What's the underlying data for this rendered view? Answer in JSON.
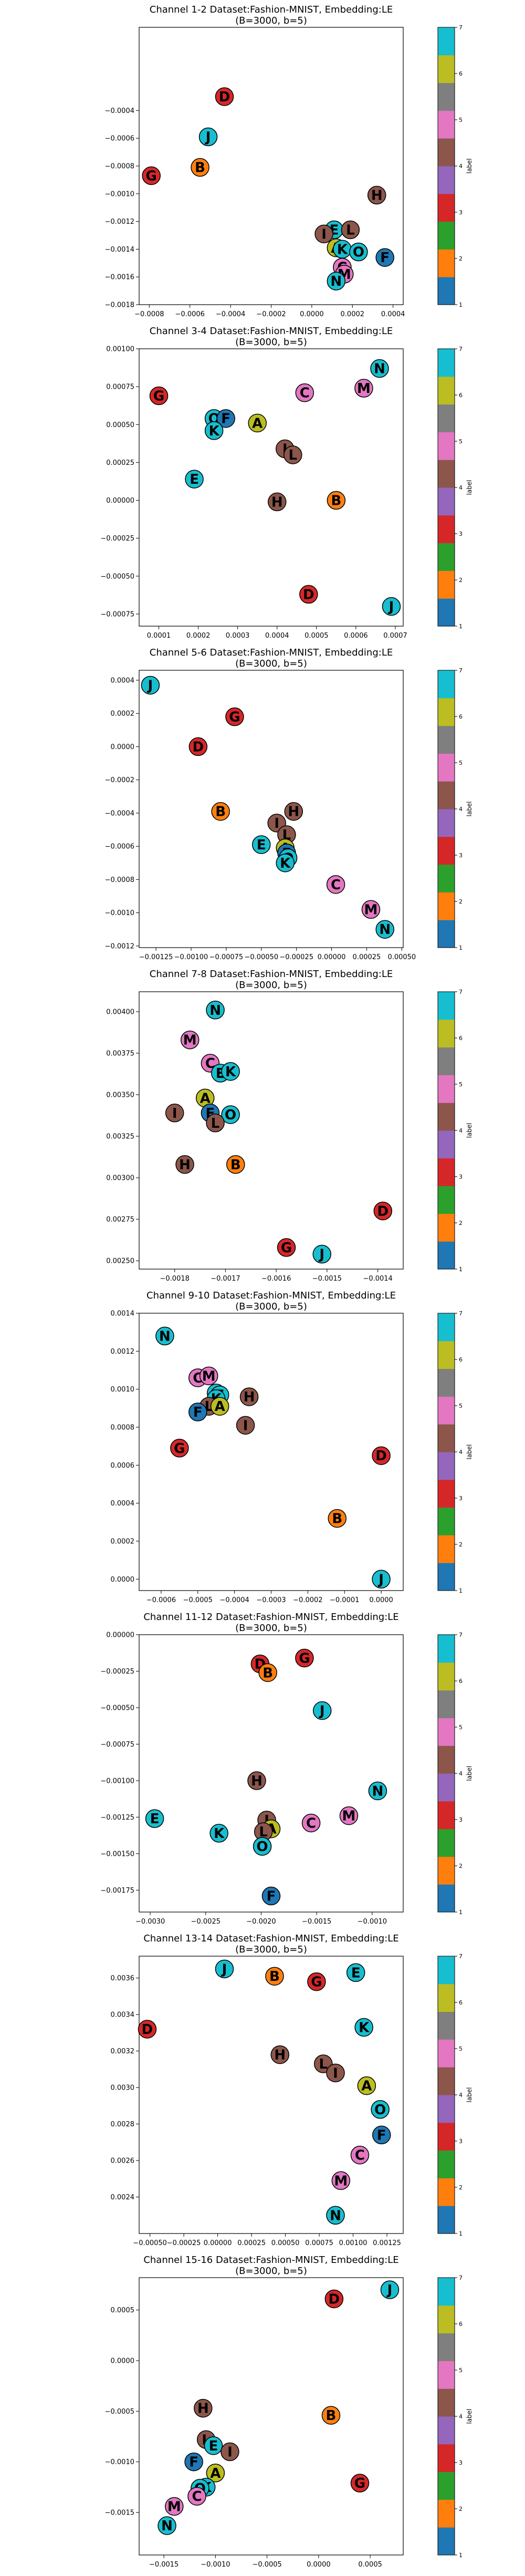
{
  "colorbar": {
    "label": "label",
    "ticks": [
      "1",
      "2",
      "3",
      "4",
      "5",
      "6",
      "7"
    ],
    "colors": [
      "#1f77b4",
      "#ff7f0e",
      "#2ca02c",
      "#d62728",
      "#9467bd",
      "#8c564b",
      "#e377c2",
      "#7f7f7f",
      "#bcbd22",
      "#17becf"
    ]
  },
  "letter_colors": {
    "A": "#bcbd22",
    "B": "#ff7f0e",
    "C": "#e377c2",
    "D": "#d62728",
    "E": "#17becf",
    "F": "#1f77b4",
    "G": "#d62728",
    "H": "#8c564b",
    "I": "#8c564b",
    "J": "#17becf",
    "K": "#17becf",
    "L": "#8c564b",
    "M": "#e377c2",
    "N": "#17becf",
    "O": "#17becf"
  },
  "chart_data": [
    {
      "type": "scatter",
      "title": "Channel 1-2 Dataset:Fashion-MNIST, Embedding:LE",
      "subtitle": "(B=3000, b=5)",
      "xlim": [
        -0.00085,
        0.00045
      ],
      "ylim": [
        -0.0018,
        0.0002
      ],
      "xticks": [
        -0.0008,
        -0.0006,
        -0.0004,
        -0.0002,
        0.0,
        0.0002,
        0.0004
      ],
      "xtick_labels": [
        "−0.0008",
        "−0.0006",
        "−0.0004",
        "−0.0002",
        "0.0000",
        "0.0002",
        "0.0004"
      ],
      "yticks": [
        -0.0018,
        -0.0016,
        -0.0014,
        -0.0012,
        -0.001,
        -0.0008,
        -0.0006,
        -0.0004
      ],
      "ytick_labels": [
        "−0.0018",
        "−0.0016",
        "−0.0014",
        "−0.0012",
        "−0.0010",
        "−0.0008",
        "−0.0006",
        "−0.0004"
      ],
      "points": [
        {
          "label": "D",
          "x": -0.00043,
          "y": -0.0003
        },
        {
          "label": "J",
          "x": -0.00051,
          "y": -0.00059
        },
        {
          "label": "B",
          "x": -0.00055,
          "y": -0.00081
        },
        {
          "label": "G",
          "x": -0.00079,
          "y": -0.00087
        },
        {
          "label": "H",
          "x": 0.00032,
          "y": -0.00101
        },
        {
          "label": "E",
          "x": 0.00011,
          "y": -0.00126
        },
        {
          "label": "L",
          "x": 0.00019,
          "y": -0.00126
        },
        {
          "label": "I",
          "x": 6e-05,
          "y": -0.00129
        },
        {
          "label": "A",
          "x": 0.00012,
          "y": -0.00139
        },
        {
          "label": "K",
          "x": 0.00015,
          "y": -0.0014
        },
        {
          "label": "O",
          "x": 0.00023,
          "y": -0.00142
        },
        {
          "label": "F",
          "x": 0.00036,
          "y": -0.00146
        },
        {
          "label": "C",
          "x": 0.00015,
          "y": -0.00153
        },
        {
          "label": "M",
          "x": 0.00016,
          "y": -0.00158
        },
        {
          "label": "N",
          "x": 0.00012,
          "y": -0.00163
        }
      ]
    },
    {
      "type": "scatter",
      "title": "Channel 3-4 Dataset:Fashion-MNIST, Embedding:LE",
      "subtitle": "(B=3000, b=5)",
      "xlim": [
        5e-05,
        0.00072
      ],
      "ylim": [
        -0.00083,
        0.001
      ],
      "xticks": [
        0.0001,
        0.0002,
        0.0003,
        0.0004,
        0.0005,
        0.0006,
        0.0007
      ],
      "xtick_labels": [
        "0.0001",
        "0.0002",
        "0.0003",
        "0.0004",
        "0.0005",
        "0.0006",
        "0.0007"
      ],
      "yticks": [
        -0.00075,
        -0.0005,
        -0.00025,
        0.0,
        0.00025,
        0.0005,
        0.00075,
        0.001
      ],
      "ytick_labels": [
        "−0.00075",
        "−0.00050",
        "−0.00025",
        "0.00000",
        "0.00025",
        "0.00050",
        "0.00075",
        "0.00100"
      ],
      "points": [
        {
          "label": "N",
          "x": 0.00066,
          "y": 0.00087
        },
        {
          "label": "M",
          "x": 0.00062,
          "y": 0.00074
        },
        {
          "label": "C",
          "x": 0.00047,
          "y": 0.00071
        },
        {
          "label": "G",
          "x": 0.0001,
          "y": 0.00069
        },
        {
          "label": "O",
          "x": 0.00024,
          "y": 0.00054
        },
        {
          "label": "F",
          "x": 0.00027,
          "y": 0.00054
        },
        {
          "label": "K",
          "x": 0.00024,
          "y": 0.00046
        },
        {
          "label": "A",
          "x": 0.00035,
          "y": 0.00051
        },
        {
          "label": "I",
          "x": 0.00042,
          "y": 0.00034
        },
        {
          "label": "L",
          "x": 0.00044,
          "y": 0.0003
        },
        {
          "label": "E",
          "x": 0.00019,
          "y": 0.00014
        },
        {
          "label": "H",
          "x": 0.0004,
          "y": -1e-05
        },
        {
          "label": "B",
          "x": 0.00055,
          "y": 0.0
        },
        {
          "label": "D",
          "x": 0.00048,
          "y": -0.00062
        },
        {
          "label": "J",
          "x": 0.00069,
          "y": -0.0007
        }
      ]
    },
    {
      "type": "scatter",
      "title": "Channel 5-6 Dataset:Fashion-MNIST, Embedding:LE",
      "subtitle": "(B=3000, b=5)",
      "xlim": [
        -0.00137,
        0.00051
      ],
      "ylim": [
        -0.00121,
        0.00046
      ],
      "xticks": [
        -0.00125,
        -0.001,
        -0.00075,
        -0.0005,
        -0.00025,
        0.0,
        0.00025,
        0.0005
      ],
      "xtick_labels": [
        "−0.00125",
        "−0.00100",
        "−0.00075",
        "−0.00050",
        "−0.00025",
        "0.00000",
        "0.00025",
        "0.00050"
      ],
      "yticks": [
        -0.0012,
        -0.001,
        -0.0008,
        -0.0006,
        -0.0004,
        -0.0002,
        0.0,
        0.0002,
        0.0004
      ],
      "ytick_labels": [
        "−0.0012",
        "−0.0010",
        "−0.0008",
        "−0.0006",
        "−0.0004",
        "−0.0002",
        "0.0000",
        "0.0002",
        "0.0004"
      ],
      "points": [
        {
          "label": "J",
          "x": -0.00129,
          "y": 0.00037
        },
        {
          "label": "G",
          "x": -0.00069,
          "y": 0.00018
        },
        {
          "label": "D",
          "x": -0.00095,
          "y": 0.0
        },
        {
          "label": "B",
          "x": -0.00079,
          "y": -0.00039
        },
        {
          "label": "H",
          "x": -0.00027,
          "y": -0.00039
        },
        {
          "label": "I",
          "x": -0.00039,
          "y": -0.00046
        },
        {
          "label": "L",
          "x": -0.00032,
          "y": -0.00053
        },
        {
          "label": "A",
          "x": -0.00033,
          "y": -0.00061
        },
        {
          "label": "E",
          "x": -0.0005,
          "y": -0.00059
        },
        {
          "label": "F",
          "x": -0.00032,
          "y": -0.00064
        },
        {
          "label": "O",
          "x": -0.00031,
          "y": -0.00067
        },
        {
          "label": "K",
          "x": -0.00033,
          "y": -0.0007
        },
        {
          "label": "C",
          "x": 3e-05,
          "y": -0.00083
        },
        {
          "label": "M",
          "x": 0.00028,
          "y": -0.00098
        },
        {
          "label": "N",
          "x": 0.00038,
          "y": -0.0011
        }
      ]
    },
    {
      "type": "scatter",
      "title": "Channel 7-8 Dataset:Fashion-MNIST, Embedding:LE",
      "subtitle": "(B=3000, b=5)",
      "xlim": [
        -0.00187,
        -0.00135
      ],
      "ylim": [
        0.00245,
        0.00412
      ],
      "xticks": [
        -0.0018,
        -0.0017,
        -0.0016,
        -0.0015,
        -0.0014
      ],
      "xtick_labels": [
        "−0.0018",
        "−0.0017",
        "−0.0016",
        "−0.0015",
        "−0.0014"
      ],
      "yticks": [
        0.0025,
        0.00275,
        0.003,
        0.00325,
        0.0035,
        0.00375,
        0.004
      ],
      "ytick_labels": [
        "0.00250",
        "0.00275",
        "0.00300",
        "0.00325",
        "0.00350",
        "0.00375",
        "0.00400"
      ],
      "points": [
        {
          "label": "N",
          "x": -0.00172,
          "y": 0.00401
        },
        {
          "label": "M",
          "x": -0.00177,
          "y": 0.00383
        },
        {
          "label": "C",
          "x": -0.00173,
          "y": 0.00369
        },
        {
          "label": "E",
          "x": -0.00171,
          "y": 0.00363
        },
        {
          "label": "K",
          "x": -0.00169,
          "y": 0.00364
        },
        {
          "label": "A",
          "x": -0.00174,
          "y": 0.00348
        },
        {
          "label": "I",
          "x": -0.0018,
          "y": 0.00339
        },
        {
          "label": "F",
          "x": -0.00173,
          "y": 0.00339
        },
        {
          "label": "O",
          "x": -0.00169,
          "y": 0.00338
        },
        {
          "label": "L",
          "x": -0.00172,
          "y": 0.00333
        },
        {
          "label": "H",
          "x": -0.00178,
          "y": 0.00308
        },
        {
          "label": "B",
          "x": -0.00168,
          "y": 0.00308
        },
        {
          "label": "D",
          "x": -0.00139,
          "y": 0.0028
        },
        {
          "label": "G",
          "x": -0.00158,
          "y": 0.00258
        },
        {
          "label": "J",
          "x": -0.00151,
          "y": 0.00254
        }
      ]
    },
    {
      "type": "scatter",
      "title": "Channel 9-10 Dataset:Fashion-MNIST, Embedding:LE",
      "subtitle": "(B=3000, b=5)",
      "xlim": [
        -0.00066,
        6e-05
      ],
      "ylim": [
        -6e-05,
        0.0014
      ],
      "xticks": [
        -0.0006,
        -0.0005,
        -0.0004,
        -0.0003,
        -0.0002,
        -0.0001,
        0.0
      ],
      "xtick_labels": [
        "−0.0006",
        "−0.0005",
        "−0.0004",
        "−0.0003",
        "−0.0002",
        "−0.0001",
        "0.0000"
      ],
      "yticks": [
        0.0,
        0.0002,
        0.0004,
        0.0006,
        0.0008,
        0.001,
        0.0012,
        0.0014
      ],
      "ytick_labels": [
        "0.0000",
        "0.0002",
        "0.0004",
        "0.0006",
        "0.0008",
        "0.0010",
        "0.0012",
        "0.0014"
      ],
      "points": [
        {
          "label": "N",
          "x": -0.00059,
          "y": 0.00128
        },
        {
          "label": "C",
          "x": -0.0005,
          "y": 0.00106
        },
        {
          "label": "M",
          "x": -0.00047,
          "y": 0.00107
        },
        {
          "label": "O",
          "x": -0.00045,
          "y": 0.00098
        },
        {
          "label": "E",
          "x": -0.00044,
          "y": 0.00097
        },
        {
          "label": "K",
          "x": -0.00045,
          "y": 0.00095
        },
        {
          "label": "H",
          "x": -0.00036,
          "y": 0.00096
        },
        {
          "label": "L",
          "x": -0.00047,
          "y": 0.00091
        },
        {
          "label": "A",
          "x": -0.00044,
          "y": 0.00091
        },
        {
          "label": "F",
          "x": -0.0005,
          "y": 0.00088
        },
        {
          "label": "I",
          "x": -0.00037,
          "y": 0.00081
        },
        {
          "label": "G",
          "x": -0.00055,
          "y": 0.00069
        },
        {
          "label": "D",
          "x": 0.0,
          "y": 0.00065
        },
        {
          "label": "B",
          "x": -0.00012,
          "y": 0.00032
        },
        {
          "label": "J",
          "x": 0.0,
          "y": 0.0
        }
      ]
    },
    {
      "type": "scatter",
      "title": "Channel 11-12 Dataset:Fashion-MNIST, Embedding:LE",
      "subtitle": "(B=3000, b=5)",
      "xlim": [
        -0.0031,
        -0.00072
      ],
      "ylim": [
        -0.0019,
        0.0
      ],
      "xticks": [
        -0.003,
        -0.0025,
        -0.002,
        -0.0015,
        -0.001
      ],
      "xtick_labels": [
        "−0.0030",
        "−0.0025",
        "−0.0020",
        "−0.0015",
        "−0.0010"
      ],
      "yticks": [
        -0.00175,
        -0.0015,
        -0.00125,
        -0.001,
        -0.00075,
        -0.0005,
        -0.00025,
        0.0
      ],
      "ytick_labels": [
        "−0.00175",
        "−0.00150",
        "−0.00125",
        "−0.00100",
        "−0.00075",
        "−0.00050",
        "−0.00025",
        "0.00000"
      ],
      "points": [
        {
          "label": "G",
          "x": -0.00161,
          "y": -0.00016
        },
        {
          "label": "D",
          "x": -0.00201,
          "y": -0.0002
        },
        {
          "label": "B",
          "x": -0.00194,
          "y": -0.00026
        },
        {
          "label": "J",
          "x": -0.00145,
          "y": -0.00052
        },
        {
          "label": "H",
          "x": -0.00204,
          "y": -0.001
        },
        {
          "label": "N",
          "x": -0.00095,
          "y": -0.00107
        },
        {
          "label": "M",
          "x": -0.00121,
          "y": -0.00124
        },
        {
          "label": "E",
          "x": -0.00296,
          "y": -0.00126
        },
        {
          "label": "I",
          "x": -0.00195,
          "y": -0.00127
        },
        {
          "label": "C",
          "x": -0.00155,
          "y": -0.00129
        },
        {
          "label": "A",
          "x": -0.00191,
          "y": -0.00133
        },
        {
          "label": "L",
          "x": -0.00198,
          "y": -0.00135
        },
        {
          "label": "K",
          "x": -0.00238,
          "y": -0.00136
        },
        {
          "label": "O",
          "x": -0.00199,
          "y": -0.00145
        },
        {
          "label": "F",
          "x": -0.00191,
          "y": -0.00179
        }
      ]
    },
    {
      "type": "scatter",
      "title": "Channel 13-14 Dataset:Fashion-MNIST, Embedding:LE",
      "subtitle": "(B=3000, b=5)",
      "xlim": [
        -0.00058,
        0.00137
      ],
      "ylim": [
        0.0022,
        0.00372
      ],
      "xticks": [
        -0.0005,
        -0.00025,
        0.0,
        0.00025,
        0.0005,
        0.00075,
        0.001,
        0.00125
      ],
      "xtick_labels": [
        "−0.00050",
        "−0.00025",
        "0.00000",
        "0.00025",
        "0.00050",
        "0.00075",
        "0.00100",
        "0.00125"
      ],
      "yticks": [
        0.0024,
        0.0026,
        0.0028,
        0.003,
        0.0032,
        0.0034,
        0.0036
      ],
      "ytick_labels": [
        "0.0024",
        "0.0026",
        "0.0028",
        "0.0030",
        "0.0032",
        "0.0034",
        "0.0036"
      ],
      "points": [
        {
          "label": "J",
          "x": 5e-05,
          "y": 0.00365
        },
        {
          "label": "B",
          "x": 0.00042,
          "y": 0.00361
        },
        {
          "label": "G",
          "x": 0.00073,
          "y": 0.00358
        },
        {
          "label": "E",
          "x": 0.00102,
          "y": 0.00363
        },
        {
          "label": "D",
          "x": -0.00052,
          "y": 0.00332
        },
        {
          "label": "K",
          "x": 0.00108,
          "y": 0.00333
        },
        {
          "label": "H",
          "x": 0.00046,
          "y": 0.00318
        },
        {
          "label": "L",
          "x": 0.00078,
          "y": 0.00313
        },
        {
          "label": "I",
          "x": 0.00087,
          "y": 0.00308
        },
        {
          "label": "A",
          "x": 0.0011,
          "y": 0.00301
        },
        {
          "label": "O",
          "x": 0.0012,
          "y": 0.00288
        },
        {
          "label": "F",
          "x": 0.00121,
          "y": 0.00274
        },
        {
          "label": "C",
          "x": 0.00105,
          "y": 0.00263
        },
        {
          "label": "M",
          "x": 0.00091,
          "y": 0.00249
        },
        {
          "label": "N",
          "x": 0.00087,
          "y": 0.0023
        }
      ]
    },
    {
      "type": "scatter",
      "title": "Channel 15-16 Dataset:Fashion-MNIST, Embedding:LE",
      "subtitle": "(B=3000, b=5)",
      "xlim": [
        -0.00174,
        0.00082
      ],
      "ylim": [
        -0.00192,
        0.00082
      ],
      "xticks": [
        -0.0015,
        -0.001,
        -0.0005,
        0.0,
        0.0005
      ],
      "xtick_labels": [
        "−0.0015",
        "−0.0010",
        "−0.0005",
        "0.0000",
        "0.0005"
      ],
      "yticks": [
        -0.0015,
        -0.001,
        -0.0005,
        0.0,
        0.0005
      ],
      "ytick_labels": [
        "−0.0015",
        "−0.0010",
        "−0.0005",
        "0.0000",
        "0.0005"
      ],
      "points": [
        {
          "label": "J",
          "x": 0.00069,
          "y": 0.0007
        },
        {
          "label": "D",
          "x": 0.00015,
          "y": 0.00061
        },
        {
          "label": "H",
          "x": -0.00112,
          "y": -0.00047
        },
        {
          "label": "B",
          "x": 0.00012,
          "y": -0.00054
        },
        {
          "label": "L",
          "x": -0.00109,
          "y": -0.00078
        },
        {
          "label": "E",
          "x": -0.00102,
          "y": -0.00084
        },
        {
          "label": "I",
          "x": -0.00086,
          "y": -0.0009
        },
        {
          "label": "F",
          "x": -0.00121,
          "y": -0.001
        },
        {
          "label": "A",
          "x": -0.001,
          "y": -0.00111
        },
        {
          "label": "G",
          "x": 0.0004,
          "y": -0.00121
        },
        {
          "label": "K",
          "x": -0.00109,
          "y": -0.00125
        },
        {
          "label": "O",
          "x": -0.00115,
          "y": -0.00126
        },
        {
          "label": "C",
          "x": -0.00118,
          "y": -0.00134
        },
        {
          "label": "M",
          "x": -0.0014,
          "y": -0.00144
        },
        {
          "label": "N",
          "x": -0.00147,
          "y": -0.00163
        }
      ]
    }
  ]
}
